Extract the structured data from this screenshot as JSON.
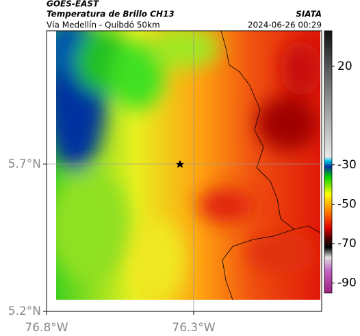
{
  "header": {
    "product": "GOES-EAST",
    "title": "Temperatura de Brillo CH13",
    "subtitle": "Vía Medellín - Quibdó 50km",
    "source": "SIATA",
    "datetime": "2024-06-26 00:29"
  },
  "map": {
    "lat_range": [
      5.2,
      6.153
    ],
    "lon_range": [
      -76.8,
      -75.865
    ],
    "lat_ticks": [
      {
        "value": 5.7,
        "label": "5.7°N"
      },
      {
        "value": 5.2,
        "label": "5.2°N"
      }
    ],
    "lon_ticks": [
      {
        "value": -76.8,
        "label": "76.8°W"
      },
      {
        "value": -76.3,
        "label": "76.3°W"
      }
    ],
    "grid": true
  },
  "colorbar": {
    "range": [
      -95,
      38
    ],
    "ticks": [
      20,
      -30,
      -50,
      -70,
      -90
    ],
    "stops": [
      {
        "value": 38,
        "color": "#111111"
      },
      {
        "value": 20,
        "color": "#555555"
      },
      {
        "value": 0,
        "color": "#999999"
      },
      {
        "value": -26,
        "color": "#e8e8e8"
      },
      {
        "value": -28,
        "color": "#00c8e8"
      },
      {
        "value": -31,
        "color": "#0030a0"
      },
      {
        "value": -36,
        "color": "#00d000"
      },
      {
        "value": -45,
        "color": "#ffff00"
      },
      {
        "value": -55,
        "color": "#ff6a00"
      },
      {
        "value": -62,
        "color": "#e00000"
      },
      {
        "value": -68,
        "color": "#400000"
      },
      {
        "value": -72,
        "color": "#000000"
      },
      {
        "value": -77,
        "color": "#e0e0e0"
      },
      {
        "value": -84,
        "color": "#c060c0"
      },
      {
        "value": -95,
        "color": "#a02080"
      }
    ]
  }
}
